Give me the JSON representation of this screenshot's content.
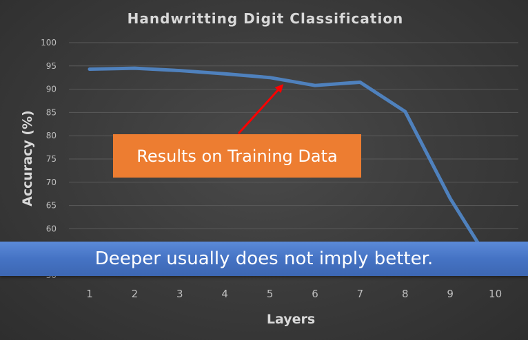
{
  "chart_data": {
    "type": "line",
    "title": "Handwritting Digit Classification",
    "xlabel": "Layers",
    "ylabel": "Accuracy (%)",
    "x": [
      1,
      2,
      3,
      4,
      5,
      6,
      7,
      8,
      9,
      10
    ],
    "series": [
      {
        "values": [
          94.3,
          94.5,
          94.0,
          93.3,
          92.5,
          90.8,
          91.5,
          85.2,
          66.5,
          51.0
        ],
        "color": "#4f81bd"
      }
    ],
    "yticks": [
      "100",
      "95",
      "90",
      "85",
      "80",
      "75",
      "70",
      "65",
      "60",
      "55",
      "50"
    ],
    "xticks": [
      "1",
      "2",
      "3",
      "4",
      "5",
      "6",
      "7",
      "8",
      "9",
      "10"
    ],
    "ylim": [
      50,
      100
    ],
    "grid": true,
    "legend": "none"
  },
  "annotation": {
    "text": "Results on Training Data",
    "color": "#ed7d31",
    "arrow_color": "#ff0000",
    "points_to_x": 5.3
  },
  "banner": {
    "text": "Deeper usually does not imply better.",
    "color": "#4472c4"
  }
}
